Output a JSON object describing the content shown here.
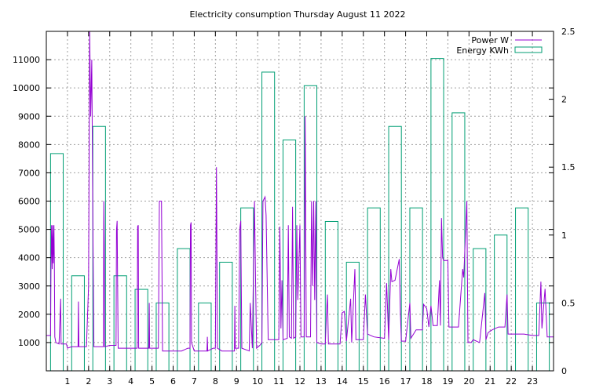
{
  "chart_data": {
    "type": "bar",
    "title": "Electricity consumption Thursday August 11 2022",
    "xlabel": "",
    "ylabel": "",
    "y2label": "",
    "xlim": [
      0,
      24
    ],
    "ylim": [
      0,
      12000
    ],
    "y2lim": [
      0,
      2.5
    ],
    "x_ticks": [
      1,
      2,
      3,
      4,
      5,
      6,
      7,
      8,
      9,
      10,
      11,
      12,
      13,
      14,
      15,
      16,
      17,
      18,
      19,
      20,
      21,
      22,
      23
    ],
    "y_ticks": [
      1000,
      2000,
      3000,
      4000,
      5000,
      6000,
      7000,
      8000,
      9000,
      10000,
      11000
    ],
    "y2_ticks": [
      "0",
      "0.5",
      "1",
      "1.5",
      "2",
      "2.5"
    ],
    "grid": true,
    "legend_position": "top-right",
    "colors": {
      "power": "#9400d3",
      "energy": "#009e73"
    },
    "series": [
      {
        "name": "Power W",
        "type": "line",
        "points": [
          [
            0.0,
            1250
          ],
          [
            0.2,
            1250
          ],
          [
            0.22,
            3500
          ],
          [
            0.25,
            5150
          ],
          [
            0.28,
            3600
          ],
          [
            0.3,
            5150
          ],
          [
            0.33,
            3800
          ],
          [
            0.36,
            5150
          ],
          [
            0.38,
            3900
          ],
          [
            0.4,
            1200
          ],
          [
            0.45,
            1000
          ],
          [
            0.6,
            950
          ],
          [
            0.68,
            2550
          ],
          [
            0.7,
            950
          ],
          [
            0.95,
            950
          ],
          [
            1.0,
            800
          ],
          [
            1.2,
            850
          ],
          [
            1.5,
            850
          ],
          [
            1.52,
            2450
          ],
          [
            1.54,
            850
          ],
          [
            1.9,
            850
          ],
          [
            2.0,
            3000
          ],
          [
            2.05,
            12000
          ],
          [
            2.1,
            9000
          ],
          [
            2.15,
            11000
          ],
          [
            2.2,
            5500
          ],
          [
            2.25,
            850
          ],
          [
            2.7,
            850
          ],
          [
            2.72,
            6000
          ],
          [
            2.74,
            4500
          ],
          [
            2.76,
            850
          ],
          [
            3.0,
            900
          ],
          [
            3.3,
            900
          ],
          [
            3.32,
            5000
          ],
          [
            3.35,
            5300
          ],
          [
            3.37,
            3400
          ],
          [
            3.4,
            800
          ],
          [
            3.8,
            800
          ],
          [
            4.0,
            800
          ],
          [
            4.3,
            800
          ],
          [
            4.32,
            5100
          ],
          [
            4.35,
            5150
          ],
          [
            4.37,
            800
          ],
          [
            4.6,
            800
          ],
          [
            4.7,
            800
          ],
          [
            4.85,
            800
          ],
          [
            4.87,
            2400
          ],
          [
            4.89,
            800
          ],
          [
            5.0,
            800
          ],
          [
            5.3,
            800
          ],
          [
            5.35,
            6000
          ],
          [
            5.45,
            6000
          ],
          [
            5.5,
            700
          ],
          [
            6.0,
            700
          ],
          [
            6.2,
            700
          ],
          [
            6.4,
            700
          ],
          [
            6.7,
            800
          ],
          [
            6.8,
            800
          ],
          [
            6.82,
            5150
          ],
          [
            6.85,
            5250
          ],
          [
            6.87,
            1000
          ],
          [
            7.0,
            700
          ],
          [
            7.6,
            700
          ],
          [
            7.62,
            1200
          ],
          [
            7.64,
            700
          ],
          [
            7.9,
            800
          ],
          [
            8.0,
            800
          ],
          [
            8.05,
            7200
          ],
          [
            8.1,
            800
          ],
          [
            8.3,
            700
          ],
          [
            8.9,
            700
          ],
          [
            8.92,
            2300
          ],
          [
            8.94,
            800
          ],
          [
            9.1,
            800
          ],
          [
            9.15,
            5000
          ],
          [
            9.2,
            5300
          ],
          [
            9.25,
            800
          ],
          [
            9.6,
            700
          ],
          [
            9.65,
            2400
          ],
          [
            9.75,
            800
          ],
          [
            9.85,
            6000
          ],
          [
            9.9,
            3200
          ],
          [
            9.95,
            800
          ],
          [
            10.1,
            900
          ],
          [
            10.2,
            1000
          ],
          [
            10.25,
            6000
          ],
          [
            10.35,
            6150
          ],
          [
            10.4,
            5500
          ],
          [
            10.5,
            1100
          ],
          [
            11.0,
            1100
          ],
          [
            11.05,
            5100
          ],
          [
            11.1,
            1500
          ],
          [
            11.15,
            3200
          ],
          [
            11.2,
            1100
          ],
          [
            11.4,
            1150
          ],
          [
            11.45,
            5150
          ],
          [
            11.5,
            1200
          ],
          [
            11.6,
            1150
          ],
          [
            11.65,
            5800
          ],
          [
            11.7,
            1150
          ],
          [
            11.8,
            1200
          ],
          [
            11.85,
            5150
          ],
          [
            11.9,
            2500
          ],
          [
            12.0,
            5150
          ],
          [
            12.05,
            1200
          ],
          [
            12.2,
            1200
          ],
          [
            12.25,
            9000
          ],
          [
            12.3,
            1200
          ],
          [
            12.5,
            1200
          ],
          [
            12.55,
            6000
          ],
          [
            12.6,
            3000
          ],
          [
            12.65,
            6000
          ],
          [
            12.7,
            2500
          ],
          [
            12.75,
            6000
          ],
          [
            12.8,
            1000
          ],
          [
            13.0,
            950
          ],
          [
            13.2,
            950
          ],
          [
            13.25,
            1900
          ],
          [
            13.3,
            2700
          ],
          [
            13.35,
            950
          ],
          [
            13.9,
            950
          ],
          [
            14.0,
            2050
          ],
          [
            14.1,
            2100
          ],
          [
            14.2,
            1050
          ],
          [
            14.4,
            2550
          ],
          [
            14.45,
            1000
          ],
          [
            14.6,
            3600
          ],
          [
            14.65,
            1100
          ],
          [
            15.0,
            1100
          ],
          [
            15.1,
            2700
          ],
          [
            15.2,
            1300
          ],
          [
            15.5,
            1200
          ],
          [
            16.0,
            1150
          ],
          [
            16.1,
            3100
          ],
          [
            16.2,
            1100
          ],
          [
            16.3,
            3600
          ],
          [
            16.35,
            3150
          ],
          [
            16.5,
            3200
          ],
          [
            16.7,
            3950
          ],
          [
            16.75,
            2100
          ],
          [
            16.8,
            1050
          ],
          [
            17.0,
            1050
          ],
          [
            17.2,
            2400
          ],
          [
            17.25,
            1150
          ],
          [
            17.5,
            1450
          ],
          [
            17.8,
            1450
          ],
          [
            17.85,
            2350
          ],
          [
            18.0,
            2200
          ],
          [
            18.1,
            1550
          ],
          [
            18.2,
            2300
          ],
          [
            18.3,
            1600
          ],
          [
            18.5,
            1600
          ],
          [
            18.6,
            3200
          ],
          [
            18.65,
            1600
          ],
          [
            18.7,
            5400
          ],
          [
            18.75,
            4000
          ],
          [
            18.8,
            3900
          ],
          [
            19.0,
            3900
          ],
          [
            19.05,
            1550
          ],
          [
            19.5,
            1550
          ],
          [
            19.7,
            3600
          ],
          [
            19.75,
            3300
          ],
          [
            19.9,
            6000
          ],
          [
            19.95,
            1000
          ],
          [
            20.1,
            1000
          ],
          [
            20.2,
            1100
          ],
          [
            20.5,
            1000
          ],
          [
            20.75,
            2750
          ],
          [
            20.8,
            1100
          ],
          [
            20.9,
            1350
          ],
          [
            21.1,
            1450
          ],
          [
            21.4,
            1550
          ],
          [
            21.7,
            1550
          ],
          [
            21.8,
            2700
          ],
          [
            21.85,
            1300
          ],
          [
            22.3,
            1300
          ],
          [
            22.6,
            1300
          ],
          [
            23.0,
            1250
          ],
          [
            23.3,
            1250
          ],
          [
            23.4,
            3150
          ],
          [
            23.45,
            1500
          ],
          [
            23.6,
            2900
          ],
          [
            23.7,
            1200
          ],
          [
            24.0,
            1200
          ]
        ]
      },
      {
        "name": "Energy KWh",
        "type": "bar",
        "categories": [
          "0",
          "1",
          "2",
          "3",
          "4",
          "5",
          "6",
          "7",
          "8",
          "9",
          "10",
          "11",
          "12",
          "13",
          "14",
          "15",
          "16",
          "17",
          "18",
          "19",
          "20",
          "21",
          "22",
          "23"
        ],
        "values": [
          1.6,
          0.7,
          1.8,
          0.7,
          0.6,
          0.5,
          0.9,
          0.5,
          0.8,
          1.2,
          2.2,
          1.7,
          2.1,
          1.1,
          0.8,
          1.2,
          1.8,
          1.2,
          2.3,
          1.9,
          0.9,
          1.0,
          1.2,
          0.5
        ]
      }
    ]
  }
}
